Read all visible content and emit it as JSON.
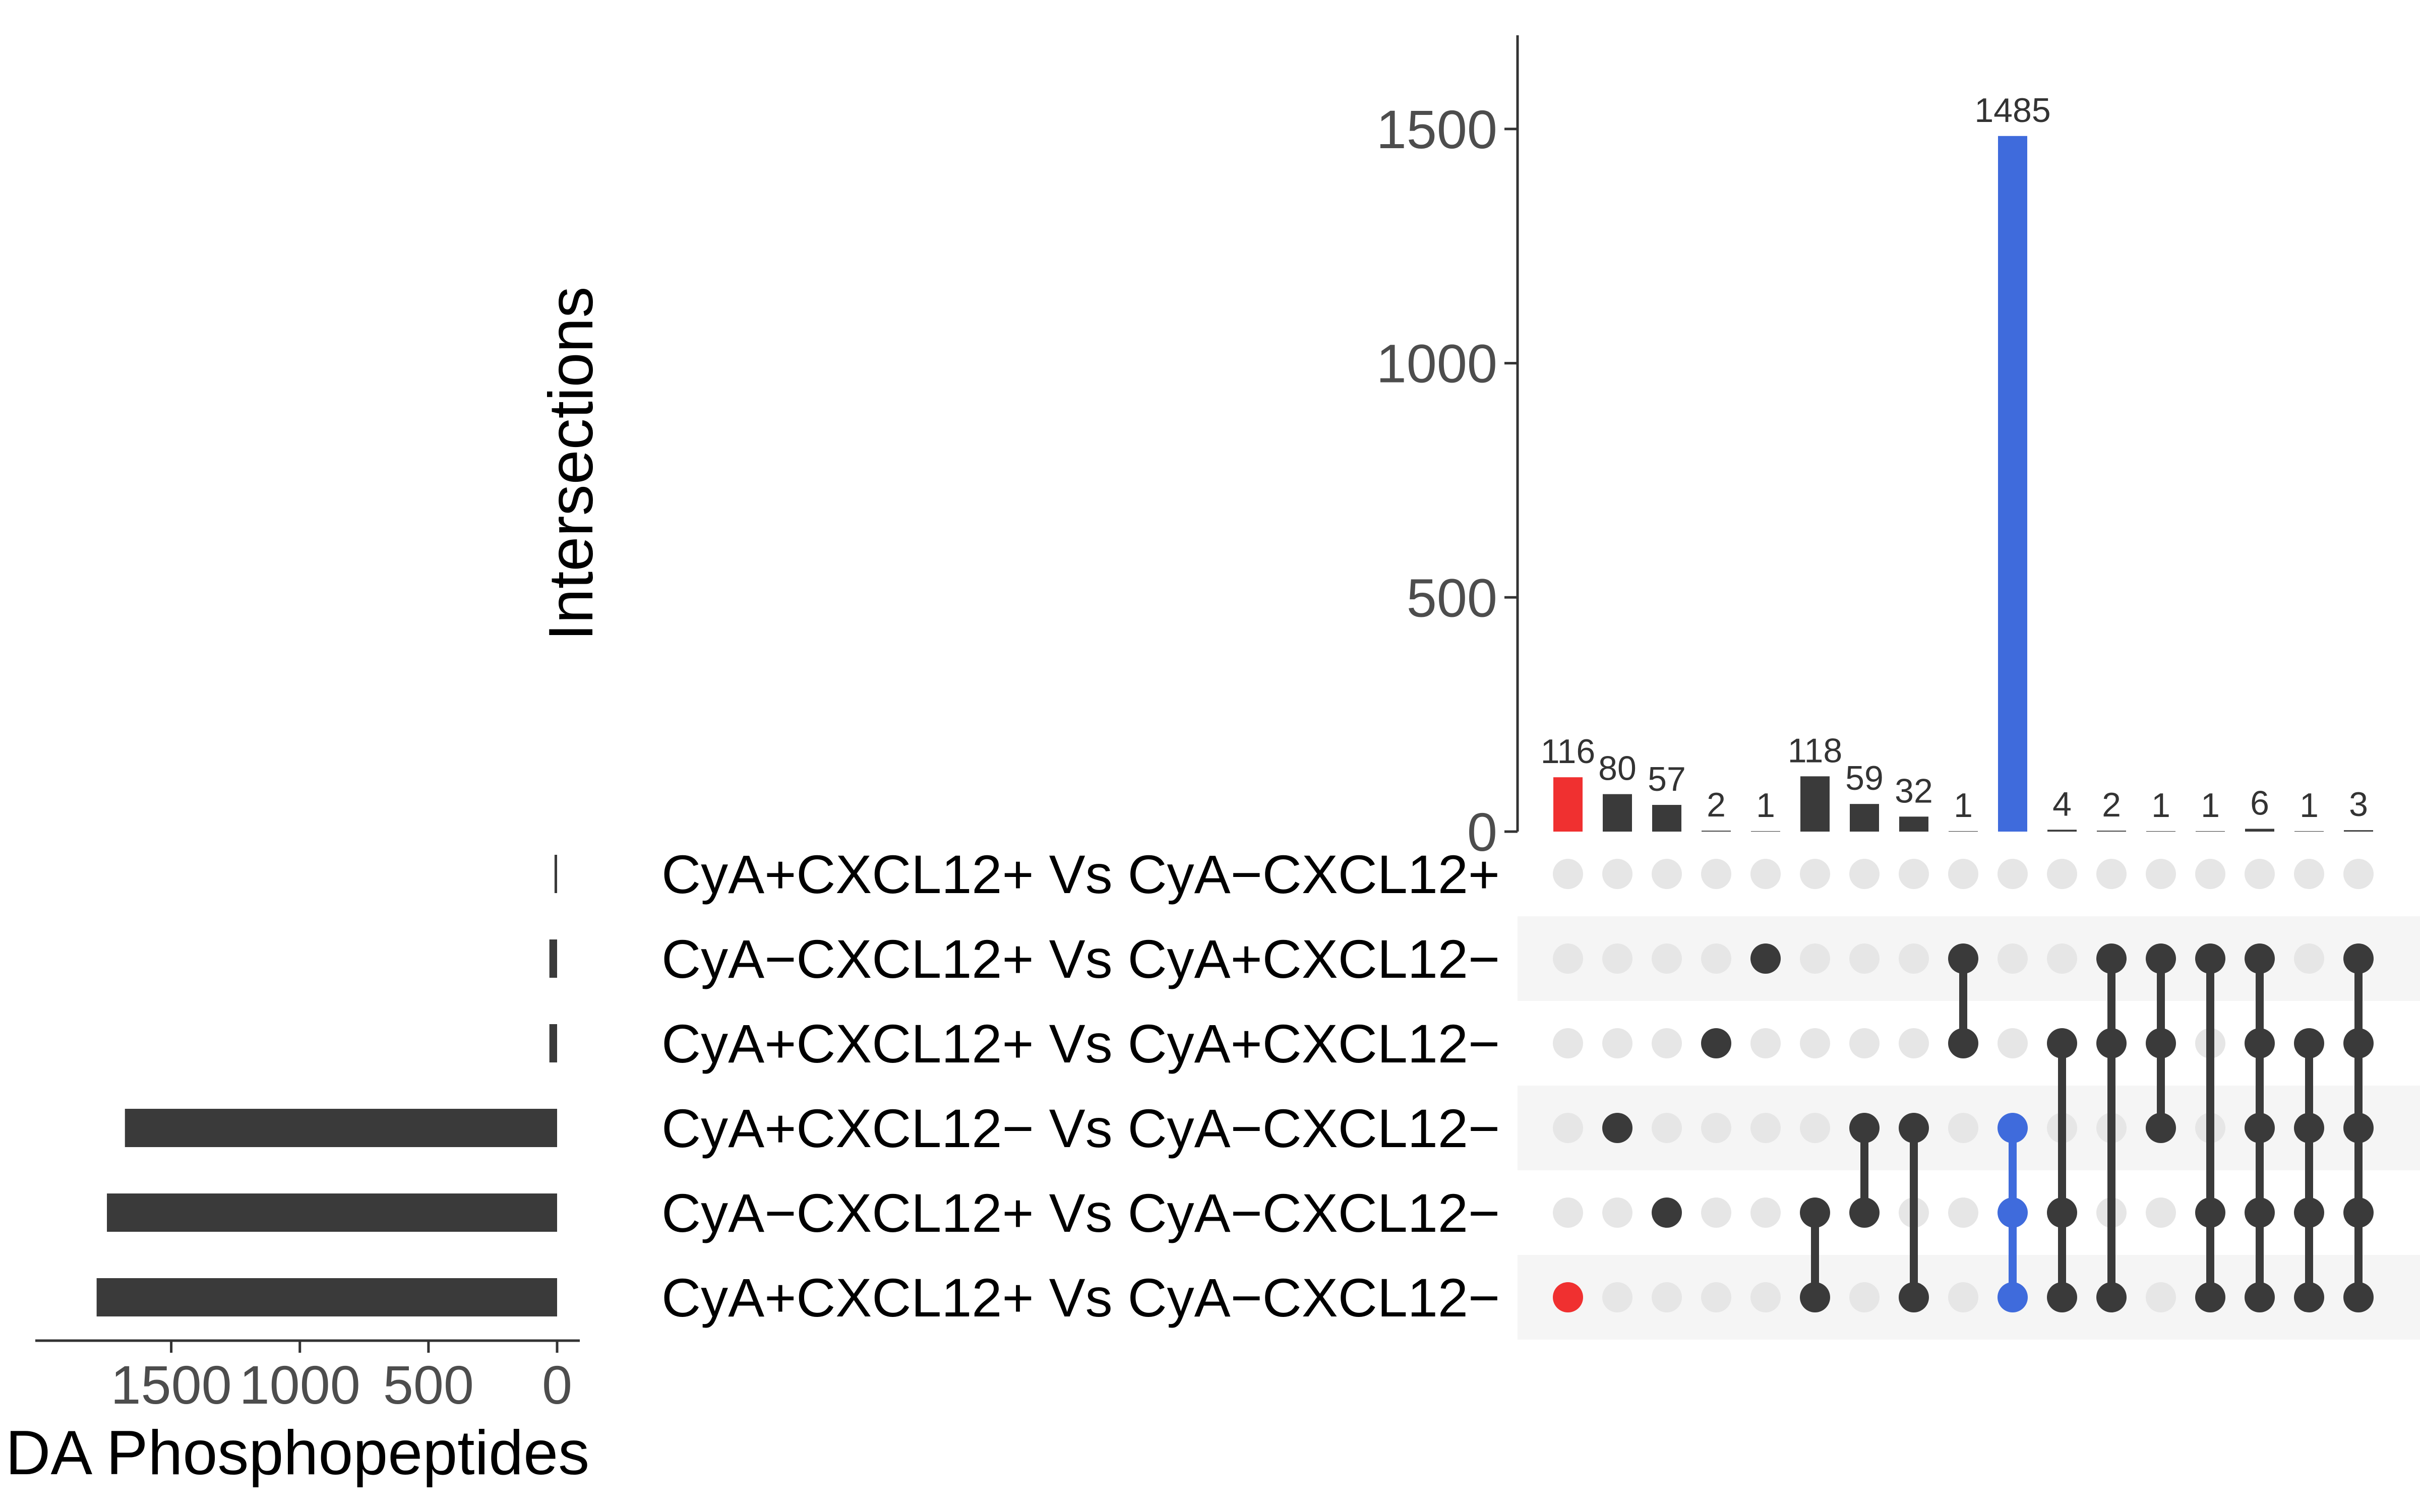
{
  "chart_data": {
    "type": "upset",
    "y_axis_title": "Intersections",
    "y_ticks": [
      0,
      500,
      1000,
      1500
    ],
    "y_max": 1700,
    "set_size_axis_title": "DA Phosphopeptides",
    "set_size_ticks": [
      1500,
      1000,
      500,
      0
    ],
    "set_size_max": 1950,
    "sets": [
      {
        "name": "CyA+CXCL12+ Vs CyA−CXCL12+",
        "size": 10
      },
      {
        "name": "CyA−CXCL12+ Vs CyA+CXCL12−",
        "size": 30
      },
      {
        "name": "CyA+CXCL12+ Vs CyA+CXCL12−",
        "size": 30
      },
      {
        "name": "CyA+CXCL12− Vs CyA−CXCL12−",
        "size": 1680
      },
      {
        "name": "CyA−CXCL12+ Vs CyA−CXCL12−",
        "size": 1750
      },
      {
        "name": "CyA+CXCL12+ Vs CyA−CXCL12−",
        "size": 1790
      }
    ],
    "intersections": [
      {
        "value": 116,
        "label": "116",
        "sets": [
          5
        ],
        "color": "#f03030"
      },
      {
        "value": 80,
        "label": "80",
        "sets": [
          3
        ],
        "color": "#3a3a3a"
      },
      {
        "value": 57,
        "label": "57",
        "sets": [
          4
        ],
        "color": "#3a3a3a"
      },
      {
        "value": 2,
        "label": "2",
        "sets": [
          2
        ],
        "color": "#3a3a3a"
      },
      {
        "value": 1,
        "label": "1",
        "sets": [
          1
        ],
        "color": "#3a3a3a"
      },
      {
        "value": 118,
        "label": "118",
        "sets": [
          4,
          5
        ],
        "color": "#3a3a3a"
      },
      {
        "value": 59,
        "label": "59",
        "sets": [
          3,
          4
        ],
        "color": "#3a3a3a"
      },
      {
        "value": 32,
        "label": "32",
        "sets": [
          3,
          5
        ],
        "color": "#3a3a3a"
      },
      {
        "value": 1,
        "label": "1",
        "sets": [
          1,
          2
        ],
        "color": "#3a3a3a"
      },
      {
        "value": 1485,
        "label": "1485",
        "sets": [
          3,
          4,
          5
        ],
        "color": "#3f6bdc"
      },
      {
        "value": 4,
        "label": "4",
        "sets": [
          2,
          4,
          5
        ],
        "color": "#3a3a3a"
      },
      {
        "value": 2,
        "label": "2",
        "sets": [
          1,
          2,
          5
        ],
        "color": "#3a3a3a"
      },
      {
        "value": 1,
        "label": "1",
        "sets": [
          1,
          2,
          3
        ],
        "color": "#3a3a3a"
      },
      {
        "value": 1,
        "label": "1",
        "sets": [
          1,
          4,
          5
        ],
        "color": "#3a3a3a"
      },
      {
        "value": 6,
        "label": "6",
        "sets": [
          1,
          2,
          3,
          4,
          5
        ],
        "color": "#3a3a3a"
      },
      {
        "value": 1,
        "label": "1",
        "sets": [
          2,
          3,
          4,
          5
        ],
        "color": "#3a3a3a"
      },
      {
        "value": 3,
        "label": "3",
        "sets": [
          1,
          2,
          3,
          4,
          5
        ],
        "color": "#3a3a3a"
      }
    ],
    "colors": {
      "default_bar": "#3a3a3a",
      "inactive_dot": "#e6e6e6",
      "stripe": "#f5f5f5",
      "axis": "#333333"
    }
  }
}
